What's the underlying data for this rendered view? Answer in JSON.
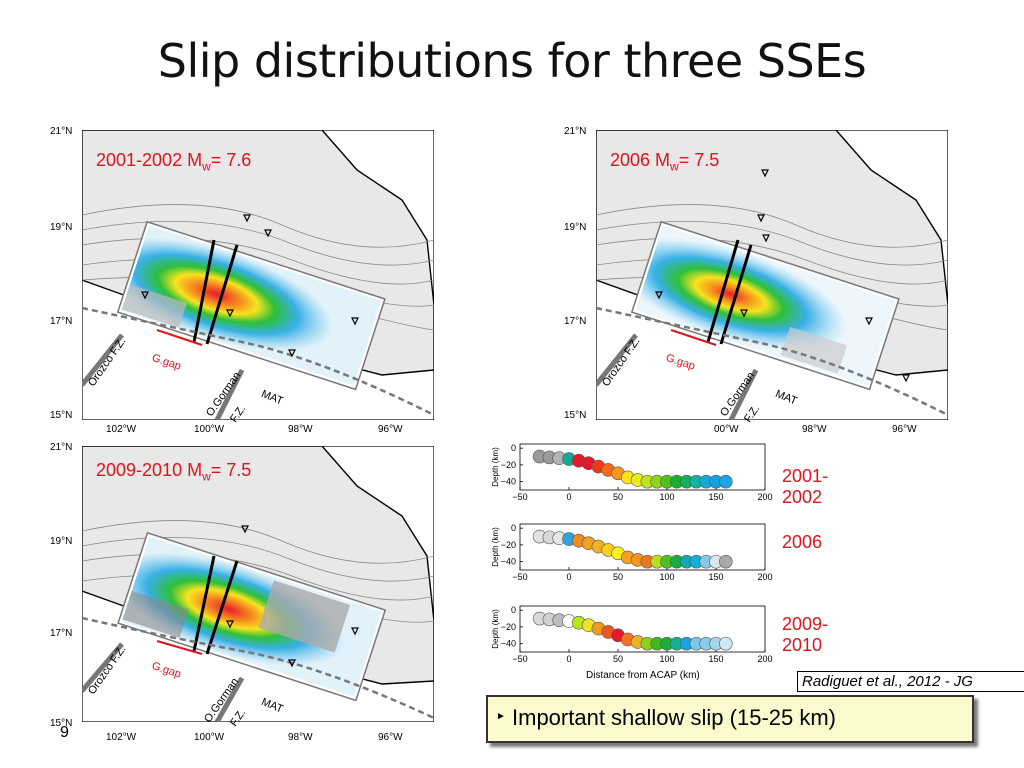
{
  "title": "Slip distributions for three SSEs",
  "maps": [
    {
      "event": "2001-2002 M",
      "sub": "w",
      "mag": "= 7.6",
      "lat_labels": [
        "21°N",
        "19°N",
        "17°N",
        "15°N"
      ],
      "lon_labels": [
        "102°W",
        "100°W",
        "98°W",
        "96°W"
      ]
    },
    {
      "event": "2006 M",
      "sub": "w",
      "mag": "= 7.5",
      "lat_labels": [
        "21°N",
        "19°N",
        "17°N",
        "15°N"
      ],
      "lon_labels": [
        "00°W",
        "98°W",
        "96°W"
      ]
    },
    {
      "event": "2009-2010 M",
      "sub": "w",
      "mag": "= 7.5",
      "lat_labels": [
        "21°N",
        "19°N",
        "17°N",
        "15°N"
      ],
      "lon_labels": [
        "102°W",
        "100°W",
        "98°W",
        "96°W"
      ]
    }
  ],
  "map_annotations": {
    "orozco": "Orozco F.Z.",
    "ggap": "G.gap",
    "ogorman": "O.Gorman",
    "fz": "F.Z.",
    "mat": "MAT"
  },
  "profiles": {
    "ylabel": "Depth (km)",
    "xlabel": "Distance from ACAP (km)",
    "yticks": [
      "0",
      "−20",
      "−40"
    ],
    "xticks": [
      "−50",
      "0",
      "50",
      "100",
      "150",
      "200"
    ],
    "panels": [
      {
        "label": "2001-2002",
        "colors": [
          "#9a9a9a",
          "#9a9a9a",
          "#b3b3b3",
          "#12a89a",
          "#e8182c",
          "#e8182c",
          "#ee3a1a",
          "#f46a1a",
          "#f7951e",
          "#ffe31a",
          "#e6ee20",
          "#bfe41e",
          "#8dd41e",
          "#4cc31e",
          "#14b42a",
          "#14b060",
          "#12b3a4",
          "#16a9d4",
          "#14a2e3",
          "#1aa3e6"
        ]
      },
      {
        "label": "2006",
        "colors": [
          "#e2e2e2",
          "#d8d8d8",
          "#e6e6e6",
          "#29a6e0",
          "#f28a1e",
          "#f6a11e",
          "#f7b01e",
          "#fbd11f",
          "#fff01a",
          "#f5a01e",
          "#f6951e",
          "#ea7a1e",
          "#b5e01e",
          "#4cc31e",
          "#16b03a",
          "#13a9b0",
          "#16aed8",
          "#86c9e7",
          "#d9e7ee",
          "#a9a9a9"
        ]
      },
      {
        "label": "2009-2010",
        "colors": [
          "#d9d9d9",
          "#cfcfcf",
          "#bcbcbc",
          "#ffffff",
          "#b6e61e",
          "#f0e41e",
          "#f29a1e",
          "#ef571e",
          "#e8182c",
          "#f0751e",
          "#edb21e",
          "#8ccf1e",
          "#3fbb1e",
          "#16b03a",
          "#14b190",
          "#1aa3e3",
          "#7bc7eb",
          "#8acbea",
          "#a7d6ee",
          "#cfe8f4"
        ]
      }
    ]
  },
  "profile_chart_data": {
    "type": "scatter",
    "x": [
      -30,
      -20,
      -10,
      0,
      10,
      20,
      30,
      40,
      50,
      60,
      70,
      80,
      90,
      100,
      110,
      120,
      130,
      140,
      150,
      160
    ],
    "depth": [
      -10,
      -11,
      -12,
      -13,
      -15,
      -18,
      -22,
      -26,
      -30,
      -35,
      -38,
      -40,
      -40,
      -40,
      -40,
      -40,
      -40,
      -40,
      -40,
      -40
    ],
    "xlim": [
      -50,
      200
    ],
    "ylim": [
      -50,
      5
    ]
  },
  "citation": "Radiguet et al., 2012 - JG",
  "callout": "Important shallow slip (15-25 km)",
  "page_number": "9"
}
